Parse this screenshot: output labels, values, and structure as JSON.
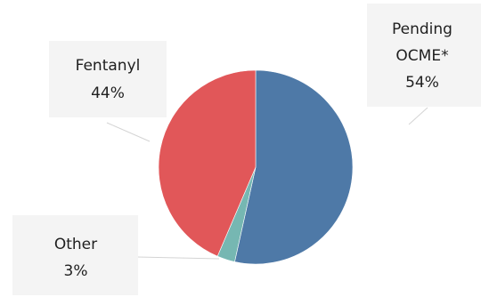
{
  "chart_data": {
    "type": "pie",
    "slices": [
      {
        "label": "Pending OCME*",
        "value": 54,
        "value_label": "54%",
        "color": "#4e79a7"
      },
      {
        "label": "Other",
        "value": 3,
        "value_label": "3%",
        "color": "#76b7b2"
      },
      {
        "label": "Fentanyl",
        "value": 44,
        "value_label": "44%",
        "color": "#e15759"
      }
    ],
    "legend": "none",
    "data_labels": "outside with leader lines"
  }
}
